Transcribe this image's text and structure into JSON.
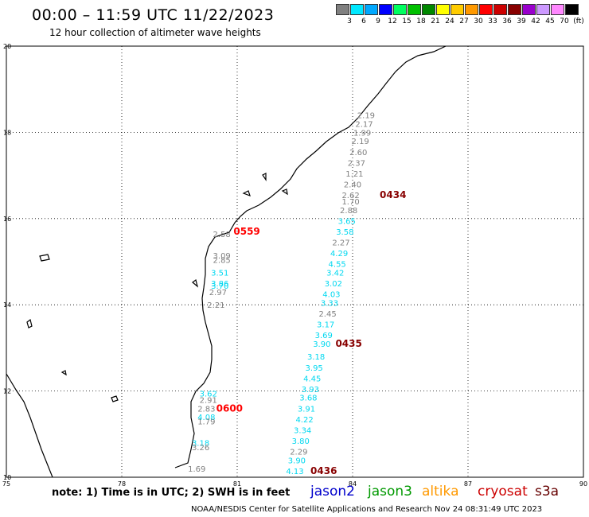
{
  "header": {
    "title": "00:00 – 11:59 UTC 11/22/2023",
    "subtitle": "12 hour collection of altimeter wave heights"
  },
  "scale": {
    "bins": [
      {
        "color": "#808080",
        "label": "3"
      },
      {
        "color": "#00e8ff",
        "label": "6"
      },
      {
        "color": "#00a8ff",
        "label": "9"
      },
      {
        "color": "#0000ff",
        "label": "12"
      },
      {
        "color": "#00ff60",
        "label": "15"
      },
      {
        "color": "#00c000",
        "label": "18"
      },
      {
        "color": "#008800",
        "label": "21"
      },
      {
        "color": "#ffff00",
        "label": "24"
      },
      {
        "color": "#ffcc00",
        "label": "27"
      },
      {
        "color": "#ff9900",
        "label": "30"
      },
      {
        "color": "#ff0000",
        "label": "33"
      },
      {
        "color": "#cc0000",
        "label": "36"
      },
      {
        "color": "#880000",
        "label": "39"
      },
      {
        "color": "#9900cc",
        "label": "42"
      },
      {
        "color": "#cc99ff",
        "label": "45"
      },
      {
        "color": "#ff88ff",
        "label": "70"
      },
      {
        "color": "#000000",
        "label": "(ft)"
      }
    ]
  },
  "map": {
    "lon_ticks": [
      "75",
      "78",
      "81",
      "84",
      "87",
      "90"
    ],
    "lat_ticks": [
      "20",
      "18",
      "16",
      "14",
      "12",
      "10"
    ],
    "lon_range": [
      75,
      90
    ],
    "lat_range": [
      10,
      20
    ],
    "grid": true
  },
  "passes": [
    {
      "label": "0434",
      "color": "#880000",
      "lon": 85.05,
      "lat": 16.55
    },
    {
      "label": "0559",
      "color": "#ff0000",
      "lon": 81.25,
      "lat": 15.7
    },
    {
      "label": "0435",
      "color": "#880000",
      "lon": 83.9,
      "lat": 13.1
    },
    {
      "label": "0600",
      "color": "#ff0000",
      "lon": 80.8,
      "lat": 11.6
    },
    {
      "label": "0436",
      "color": "#880000",
      "lon": 83.25,
      "lat": 10.15
    }
  ],
  "wave_heights": [
    {
      "v": "2.19",
      "lon": 84.35,
      "lat": 18.4,
      "c": "#808080"
    },
    {
      "v": "2.17",
      "lon": 84.3,
      "lat": 18.2,
      "c": "#808080"
    },
    {
      "v": "1.99",
      "lon": 84.25,
      "lat": 18.0,
      "c": "#808080"
    },
    {
      "v": "2.19",
      "lon": 84.2,
      "lat": 17.8,
      "c": "#808080"
    },
    {
      "v": "2.60",
      "lon": 84.15,
      "lat": 17.55,
      "c": "#808080"
    },
    {
      "v": "2.37",
      "lon": 84.1,
      "lat": 17.3,
      "c": "#808080"
    },
    {
      "v": "1.21",
      "lon": 84.05,
      "lat": 17.05,
      "c": "#808080"
    },
    {
      "v": "2.40",
      "lon": 84.0,
      "lat": 16.8,
      "c": "#808080"
    },
    {
      "v": "2.62",
      "lon": 83.95,
      "lat": 16.55,
      "c": "#808080"
    },
    {
      "v": "1.70",
      "lon": 83.95,
      "lat": 16.4,
      "c": "#808080"
    },
    {
      "v": "2.88",
      "lon": 83.9,
      "lat": 16.2,
      "c": "#808080"
    },
    {
      "v": "3.65",
      "lon": 83.85,
      "lat": 15.95,
      "c": "#00d8f0"
    },
    {
      "v": "3.58",
      "lon": 83.8,
      "lat": 15.7,
      "c": "#00d8f0"
    },
    {
      "v": "2.27",
      "lon": 83.7,
      "lat": 15.45,
      "c": "#808080"
    },
    {
      "v": "4.29",
      "lon": 83.65,
      "lat": 15.2,
      "c": "#00d8f0"
    },
    {
      "v": "4.55",
      "lon": 83.6,
      "lat": 14.95,
      "c": "#00d8f0"
    },
    {
      "v": "3.42",
      "lon": 83.55,
      "lat": 14.75,
      "c": "#00d8f0"
    },
    {
      "v": "3.02",
      "lon": 83.5,
      "lat": 14.5,
      "c": "#00d8f0"
    },
    {
      "v": "4.03",
      "lon": 83.45,
      "lat": 14.25,
      "c": "#00d8f0"
    },
    {
      "v": "3.33",
      "lon": 83.4,
      "lat": 14.05,
      "c": "#00d8f0"
    },
    {
      "v": "2.45",
      "lon": 83.35,
      "lat": 13.8,
      "c": "#808080"
    },
    {
      "v": "3.17",
      "lon": 83.3,
      "lat": 13.55,
      "c": "#00d8f0"
    },
    {
      "v": "3.69",
      "lon": 83.25,
      "lat": 13.3,
      "c": "#00d8f0"
    },
    {
      "v": "3.90",
      "lon": 83.2,
      "lat": 13.1,
      "c": "#00d8f0"
    },
    {
      "v": "3.18",
      "lon": 83.05,
      "lat": 12.8,
      "c": "#00d8f0"
    },
    {
      "v": "3.95",
      "lon": 83.0,
      "lat": 12.55,
      "c": "#00d8f0"
    },
    {
      "v": "4.45",
      "lon": 82.95,
      "lat": 12.3,
      "c": "#00d8f0"
    },
    {
      "v": "3.93",
      "lon": 82.9,
      "lat": 12.05,
      "c": "#00d8f0"
    },
    {
      "v": "3.68",
      "lon": 82.85,
      "lat": 11.85,
      "c": "#00d8f0"
    },
    {
      "v": "3.91",
      "lon": 82.8,
      "lat": 11.6,
      "c": "#00d8f0"
    },
    {
      "v": "4.22",
      "lon": 82.75,
      "lat": 11.35,
      "c": "#00d8f0"
    },
    {
      "v": "3.34",
      "lon": 82.7,
      "lat": 11.1,
      "c": "#00d8f0"
    },
    {
      "v": "3.80",
      "lon": 82.65,
      "lat": 10.85,
      "c": "#00d8f0"
    },
    {
      "v": "2.29",
      "lon": 82.6,
      "lat": 10.6,
      "c": "#808080"
    },
    {
      "v": "3.90",
      "lon": 82.55,
      "lat": 10.4,
      "c": "#00d8f0"
    },
    {
      "v": "4.13",
      "lon": 82.5,
      "lat": 10.15,
      "c": "#00d8f0"
    },
    {
      "v": "2.58",
      "lon": 80.6,
      "lat": 15.65,
      "c": "#808080"
    },
    {
      "v": "3.09",
      "lon": 80.6,
      "lat": 15.15,
      "c": "#808080"
    },
    {
      "v": "2.85",
      "lon": 80.6,
      "lat": 15.05,
      "c": "#808080"
    },
    {
      "v": "3.51",
      "lon": 80.55,
      "lat": 14.75,
      "c": "#00d8f0"
    },
    {
      "v": "3.86",
      "lon": 80.55,
      "lat": 14.5,
      "c": "#00d8f0"
    },
    {
      "v": "3.70",
      "lon": 80.55,
      "lat": 14.45,
      "c": "#00d8f0"
    },
    {
      "v": "2.97",
      "lon": 80.5,
      "lat": 14.3,
      "c": "#808080"
    },
    {
      "v": "2.21",
      "lon": 80.45,
      "lat": 14.0,
      "c": "#808080"
    },
    {
      "v": "3.62",
      "lon": 80.25,
      "lat": 11.95,
      "c": "#00d8f0"
    },
    {
      "v": "2.91",
      "lon": 80.25,
      "lat": 11.8,
      "c": "#808080"
    },
    {
      "v": "2.83",
      "lon": 80.2,
      "lat": 11.6,
      "c": "#808080"
    },
    {
      "v": "4.08",
      "lon": 80.2,
      "lat": 11.4,
      "c": "#00d8f0"
    },
    {
      "v": "1.79",
      "lon": 80.2,
      "lat": 11.3,
      "c": "#808080"
    },
    {
      "v": "3.18",
      "lon": 80.05,
      "lat": 10.8,
      "c": "#00d8f0"
    },
    {
      "v": "3.26",
      "lon": 80.05,
      "lat": 10.7,
      "c": "#808080"
    },
    {
      "v": "1.69",
      "lon": 79.95,
      "lat": 10.2,
      "c": "#808080"
    }
  ],
  "footer": {
    "note": "note: 1) Time is in UTC; 2) SWH is in feet",
    "satellites": [
      {
        "name": "jason2",
        "color": "#0000cc"
      },
      {
        "name": "jason3",
        "color": "#009900"
      },
      {
        "name": "altika",
        "color": "#ff9900"
      },
      {
        "name": "cryosat",
        "color": "#cc0000"
      },
      {
        "name": "s3a",
        "color": "#660000"
      }
    ],
    "credit": "NOAA/NESDIS Center for Satellite Applications and Research    Nov 24 08:31:49 UTC 2023"
  }
}
